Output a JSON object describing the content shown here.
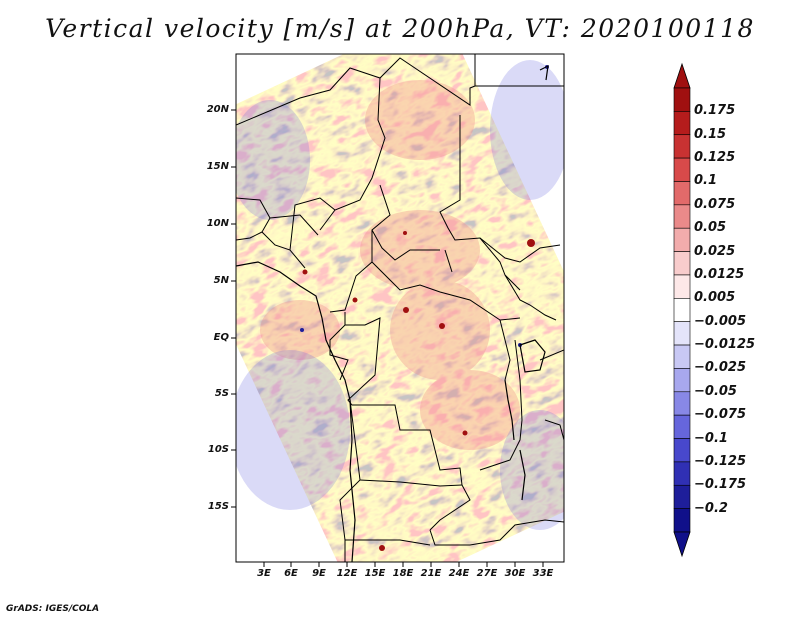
{
  "title": "Vertical velocity [m/s] at 200hPa, VT: 2020100118",
  "credit": "GrADS: IGES/COLA",
  "lat_labels": [
    "20N",
    "15N",
    "10N",
    "5N",
    "EQ",
    "5S",
    "10S",
    "15S"
  ],
  "lon_labels": [
    "3E",
    "6E",
    "9E",
    "12E",
    "15E",
    "18E",
    "21E",
    "24E",
    "27E",
    "30E",
    "33E"
  ],
  "colorbar": {
    "labels": [
      "0.175",
      "0.15",
      "0.125",
      "0.1",
      "0.075",
      "0.05",
      "0.025",
      "0.0125",
      "0.005",
      "−0.005",
      "−0.0125",
      "−0.025",
      "−0.05",
      "−0.075",
      "−0.1",
      "−0.125",
      "−0.175",
      "−0.2"
    ],
    "colors": [
      "#a01010",
      "#b51c1c",
      "#c83232",
      "#d84a4a",
      "#e26a6a",
      "#ea8a8a",
      "#f2acac",
      "#f8cccc",
      "#fde8e8",
      "#ffffff",
      "#e4e4fa",
      "#c8c8f4",
      "#a8a8ee",
      "#8888e6",
      "#6666dc",
      "#4848cc",
      "#3030b4",
      "#1e1e9a",
      "#10108a"
    ],
    "top_arrow_color": "#a01010",
    "bottom_arrow_color": "#10108a"
  }
}
